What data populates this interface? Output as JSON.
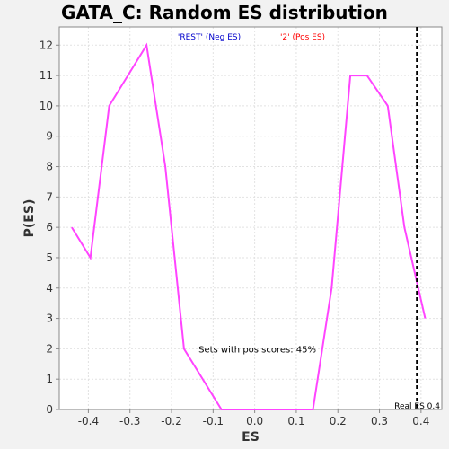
{
  "chart_data": {
    "type": "line",
    "title": "GATA_C: Random ES distribution",
    "xlabel": "ES",
    "ylabel": "P(ES)",
    "xlim": [
      -0.47,
      0.45
    ],
    "ylim": [
      0,
      12.6
    ],
    "xticks": [
      -0.4,
      -0.3,
      -0.2,
      -0.1,
      0.0,
      0.1,
      0.2,
      0.3,
      0.4
    ],
    "yticks": [
      0,
      1,
      2,
      3,
      4,
      5,
      6,
      7,
      8,
      9,
      10,
      11,
      12
    ],
    "xtick_labels": [
      "-0.4",
      "-0.3",
      "-0.2",
      "-0.1",
      "0.0",
      "0.1",
      "0.2",
      "0.3",
      "0.4"
    ],
    "ytick_labels": [
      "0",
      "1",
      "2",
      "3",
      "4",
      "5",
      "6",
      "7",
      "8",
      "9",
      "10",
      "11",
      "12"
    ],
    "grid": true,
    "legend": {
      "neg_label": "'REST' (Neg ES)",
      "pos_label": "'2' (Pos ES)",
      "neg_color": "#0000cc",
      "pos_color": "#ff0000"
    },
    "line_color": "#ff44ff",
    "series": [
      {
        "x": [
          -0.44,
          -0.395,
          -0.35,
          -0.26,
          -0.215,
          -0.17,
          -0.08,
          0.0,
          0.14,
          0.185,
          0.23,
          0.27,
          0.32,
          0.36,
          0.41
        ],
        "y": [
          6,
          5,
          10,
          12,
          8,
          2,
          0,
          0,
          0,
          4,
          11,
          11,
          10,
          6,
          3
        ]
      }
    ],
    "annotation": "Sets with pos scores: 45%",
    "annotation_pos": {
      "x": -0.135,
      "y": 2.0
    },
    "real_es": {
      "value": 0.39,
      "label": "Real ES 0.4"
    }
  }
}
